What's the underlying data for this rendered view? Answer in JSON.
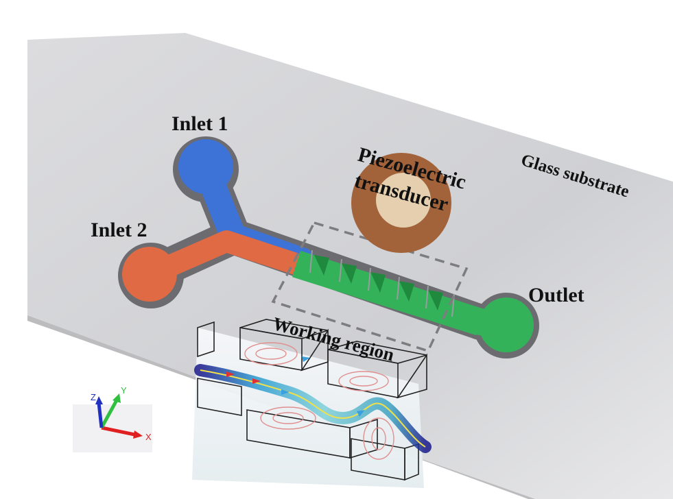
{
  "labels": {
    "inlet1": "Inlet 1",
    "inlet2": "Inlet 2",
    "outlet": "Outlet",
    "transducer_line1": "Piezoelectric",
    "transducer_line2": "transducer",
    "substrate": "Glass substrate",
    "working_region": "Working region"
  },
  "axes": {
    "x": "X",
    "y": "Y",
    "z": "Z"
  },
  "colors": {
    "inlet1_fluid": "#3d73d6",
    "inlet2_fluid": "#e06a43",
    "mixing_fluid": "#34b25a",
    "substrate": "#d9d9dc",
    "transducer_outer": "#a2623a",
    "transducer_inner": "#e5cfae",
    "x_axis": "#e02020",
    "y_axis": "#30c040",
    "z_axis": "#2030c0"
  }
}
